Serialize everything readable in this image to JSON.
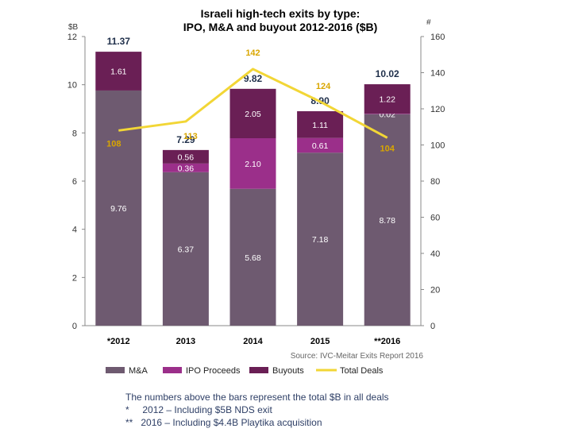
{
  "chart_data": {
    "type": "bar",
    "title_lines": [
      "Israeli high-tech exits by type:",
      "IPO, M&A and buyout 2012-2016 ($B)"
    ],
    "categories": [
      "*2012",
      "2013",
      "2014",
      "2015",
      "**2016"
    ],
    "left_unit": "$B",
    "right_unit": "#",
    "ylim_left": [
      0,
      12
    ],
    "left_ticks": [
      0,
      2,
      4,
      6,
      8,
      10,
      12
    ],
    "ylim_right": [
      0,
      160
    ],
    "right_ticks": [
      0,
      20,
      40,
      60,
      80,
      100,
      120,
      140,
      160
    ],
    "stack_series": [
      {
        "name": "M&A",
        "color": "#6e5a70",
        "label_color": "#ffffff",
        "values": [
          9.76,
          6.37,
          5.68,
          7.18,
          8.78
        ],
        "labels": [
          "9.76",
          "6.37",
          "5.68",
          "7.18",
          "8.78"
        ]
      },
      {
        "name": "IPO Proceeds",
        "color": "#9b2f8a",
        "label_color": "#ffffff",
        "values": [
          0,
          0.36,
          2.1,
          0.61,
          0.02
        ],
        "labels": [
          "",
          "0.36",
          "2.10",
          "0.61",
          "0.02"
        ]
      },
      {
        "name": "Buyouts",
        "color": "#6a1f55",
        "label_color": "#ffffff",
        "values": [
          1.61,
          0.56,
          2.05,
          1.11,
          1.22
        ],
        "labels": [
          "1.61",
          "0.56",
          "2.05",
          "1.11",
          "1.22"
        ]
      }
    ],
    "totals": [
      11.37,
      7.29,
      9.82,
      8.9,
      10.02
    ],
    "total_labels": [
      "11.37",
      "7.29",
      "9.82",
      "8.90",
      "10.02"
    ],
    "line_series": {
      "name": "Total Deals",
      "color": "#f2d636",
      "label_color": "#d9a600",
      "values": [
        108,
        113,
        142,
        124,
        104
      ],
      "labels": [
        "108",
        "113",
        "142",
        "124",
        "104"
      ]
    },
    "legend": [
      "M&A",
      "IPO Proceeds",
      "Buyouts",
      "Total Deals"
    ],
    "legend_position": "bottom",
    "grid": false
  },
  "source": "Source: IVC-Meitar Exits Report 2016",
  "notes": [
    "The numbers above the bars represent the total $B in all deals",
    "*     2012 – Including $5B NDS exit",
    "**   2016 – Including $4.4B Playtika acquisition"
  ]
}
